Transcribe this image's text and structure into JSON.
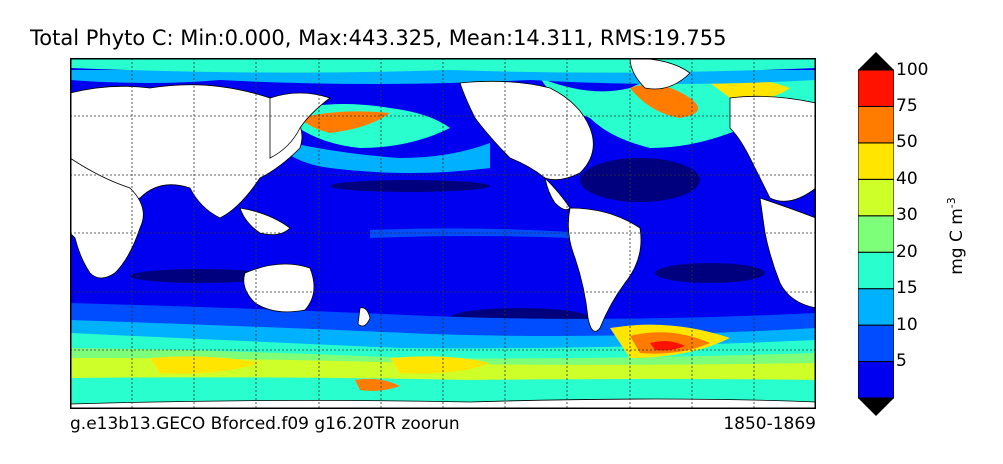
{
  "title": "Total Phyto C: Min:0.000, Max:443.325, Mean:14.311, RMS:19.755",
  "caption_left": "g.e13b13.GECO Bforced.f09 g16.20TR zoorun",
  "caption_right": "1850-1869",
  "colorbar": {
    "unit_text": "mg C m",
    "unit_exponent": "-3",
    "labels": [
      "5",
      "10",
      "15",
      "20",
      "30",
      "40",
      "50",
      "75",
      "100"
    ],
    "colors": [
      "#00007f",
      "#0000f1",
      "#004dff",
      "#00b1ff",
      "#29ffce",
      "#7dff7a",
      "#ceff29",
      "#ffe500",
      "#ff7c00",
      "#ff1300",
      "#7f0000"
    ]
  },
  "map": {
    "land_color": "#ffffff",
    "ocean_base_color": "#0000f1"
  }
}
